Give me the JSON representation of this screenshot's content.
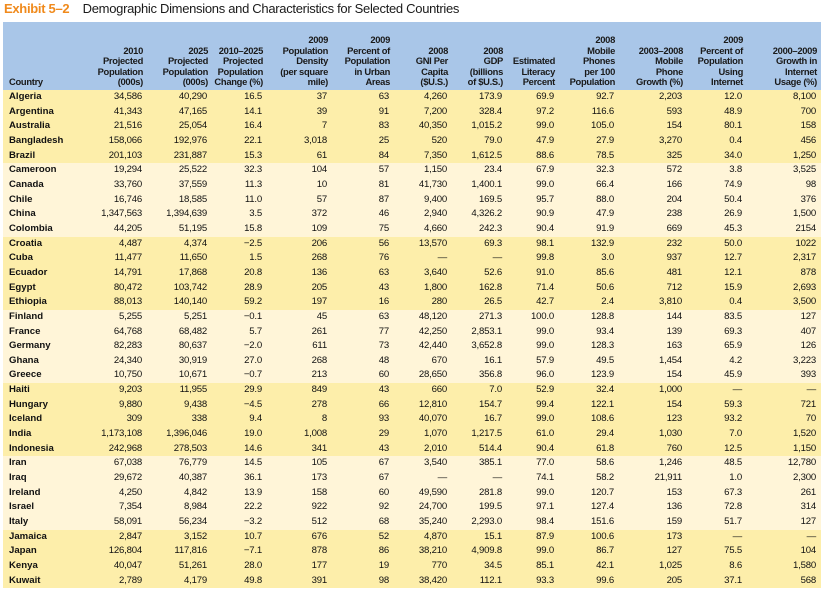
{
  "title": {
    "exhibit": "Exhibit 5–2",
    "text": "Demographic Dimensions and Characteristics for Selected Countries"
  },
  "colors": {
    "exhibit": "#f08a1c",
    "header_bg": "#a9c6e8",
    "band_dark": "#fdeeaa",
    "band_light": "#fff5d8"
  },
  "columns": [
    [
      "Country"
    ],
    [
      "2010",
      "Projected",
      "Population",
      "(000s)"
    ],
    [
      "2025",
      "Projected",
      "Population",
      "(000s)"
    ],
    [
      "2010–2025",
      "Projected",
      "Population",
      "Change (%)"
    ],
    [
      "2009",
      "Population",
      "Density",
      "(per square",
      "mile)"
    ],
    [
      "2009",
      "Percent of",
      "Population",
      "in Urban",
      "Areas"
    ],
    [
      "2008",
      "GNI Per",
      "Capita",
      "($U.S.)"
    ],
    [
      "2008",
      "GDP",
      "(billions",
      "of $U.S.)"
    ],
    [
      "Estimated",
      "Literacy",
      "Percent"
    ],
    [
      "2008",
      "Mobile",
      "Phones",
      "per 100",
      "Population"
    ],
    [
      "2003–2008",
      "Mobile",
      "Phone",
      "Growth (%)"
    ],
    [
      "2009",
      "Percent of",
      "Population",
      "Using",
      "Internet"
    ],
    [
      "2000–2009",
      "Growth in",
      "Internet",
      "Usage (%)"
    ]
  ],
  "groups": [
    [
      [
        "Algeria",
        "34,586",
        "40,290",
        "16.5",
        "37",
        "63",
        "4,260",
        "173.9",
        "69.9",
        "92.7",
        "2,203",
        "12.0",
        "8,100"
      ],
      [
        "Argentina",
        "41,343",
        "47,165",
        "14.1",
        "39",
        "91",
        "7,200",
        "328.4",
        "97.2",
        "116.6",
        "593",
        "48.9",
        "700"
      ],
      [
        "Australia",
        "21,516",
        "25,054",
        "16.4",
        "7",
        "83",
        "40,350",
        "1,015.2",
        "99.0",
        "105.0",
        "154",
        "80.1",
        "158"
      ],
      [
        "Bangladesh",
        "158,066",
        "192,976",
        "22.1",
        "3,018",
        "25",
        "520",
        "79.0",
        "47.9",
        "27.9",
        "3,270",
        "0.4",
        "456"
      ],
      [
        "Brazil",
        "201,103",
        "231,887",
        "15.3",
        "61",
        "84",
        "7,350",
        "1,612.5",
        "88.6",
        "78.5",
        "325",
        "34.0",
        "1,250"
      ]
    ],
    [
      [
        "Cameroon",
        "19,294",
        "25,522",
        "32.3",
        "104",
        "57",
        "1,150",
        "23.4",
        "67.9",
        "32.3",
        "572",
        "3.8",
        "3,525"
      ],
      [
        "Canada",
        "33,760",
        "37,559",
        "11.3",
        "10",
        "81",
        "41,730",
        "1,400.1",
        "99.0",
        "66.4",
        "166",
        "74.9",
        "98"
      ],
      [
        "Chile",
        "16,746",
        "18,585",
        "11.0",
        "57",
        "87",
        "9,400",
        "169.5",
        "95.7",
        "88.0",
        "204",
        "50.4",
        "376"
      ],
      [
        "China",
        "1,347,563",
        "1,394,639",
        "3.5",
        "372",
        "46",
        "2,940",
        "4,326.2",
        "90.9",
        "47.9",
        "238",
        "26.9",
        "1,500"
      ],
      [
        "Colombia",
        "44,205",
        "51,195",
        "15.8",
        "109",
        "75",
        "4,660",
        "242.3",
        "90.4",
        "91.9",
        "669",
        "45.3",
        "2154"
      ]
    ],
    [
      [
        "Croatia",
        "4,487",
        "4,374",
        "−2.5",
        "206",
        "56",
        "13,570",
        "69.3",
        "98.1",
        "132.9",
        "232",
        "50.0",
        "1022"
      ],
      [
        "Cuba",
        "11,477",
        "11,650",
        "1.5",
        "268",
        "76",
        "—",
        "—",
        "99.8",
        "3.0",
        "937",
        "12.7",
        "2,317"
      ],
      [
        "Ecuador",
        "14,791",
        "17,868",
        "20.8",
        "136",
        "63",
        "3,640",
        "52.6",
        "91.0",
        "85.6",
        "481",
        "12.1",
        "878"
      ],
      [
        "Egypt",
        "80,472",
        "103,742",
        "28.9",
        "205",
        "43",
        "1,800",
        "162.8",
        "71.4",
        "50.6",
        "712",
        "15.9",
        "2,693"
      ],
      [
        "Ethiopia",
        "88,013",
        "140,140",
        "59.2",
        "197",
        "16",
        "280",
        "26.5",
        "42.7",
        "2.4",
        "3,810",
        "0.4",
        "3,500"
      ]
    ],
    [
      [
        "Finland",
        "5,255",
        "5,251",
        "−0.1",
        "45",
        "63",
        "48,120",
        "271.3",
        "100.0",
        "128.8",
        "144",
        "83.5",
        "127"
      ],
      [
        "France",
        "64,768",
        "68,482",
        "5.7",
        "261",
        "77",
        "42,250",
        "2,853.1",
        "99.0",
        "93.4",
        "139",
        "69.3",
        "407"
      ],
      [
        "Germany",
        "82,283",
        "80,637",
        "−2.0",
        "611",
        "73",
        "42,440",
        "3,652.8",
        "99.0",
        "128.3",
        "163",
        "65.9",
        "126"
      ],
      [
        "Ghana",
        "24,340",
        "30,919",
        "27.0",
        "268",
        "48",
        "670",
        "16.1",
        "57.9",
        "49.5",
        "1,454",
        "4.2",
        "3,223"
      ],
      [
        "Greece",
        "10,750",
        "10,671",
        "−0.7",
        "213",
        "60",
        "28,650",
        "356.8",
        "96.0",
        "123.9",
        "154",
        "45.9",
        "393"
      ]
    ],
    [
      [
        "Haiti",
        "9,203",
        "11,955",
        "29.9",
        "849",
        "43",
        "660",
        "7.0",
        "52.9",
        "32.4",
        "1,000",
        "—",
        "—"
      ],
      [
        "Hungary",
        "9,880",
        "9,438",
        "−4.5",
        "278",
        "66",
        "12,810",
        "154.7",
        "99.4",
        "122.1",
        "154",
        "59.3",
        "721"
      ],
      [
        "Iceland",
        "309",
        "338",
        "9.4",
        "8",
        "93",
        "40,070",
        "16.7",
        "99.0",
        "108.6",
        "123",
        "93.2",
        "70"
      ],
      [
        "India",
        "1,173,108",
        "1,396,046",
        "19.0",
        "1,008",
        "29",
        "1,070",
        "1,217.5",
        "61.0",
        "29.4",
        "1,030",
        "7.0",
        "1,520"
      ],
      [
        "Indonesia",
        "242,968",
        "278,503",
        "14.6",
        "341",
        "43",
        "2,010",
        "514.4",
        "90.4",
        "61.8",
        "760",
        "12.5",
        "1,150"
      ]
    ],
    [
      [
        "Iran",
        "67,038",
        "76,779",
        "14.5",
        "105",
        "67",
        "3,540",
        "385.1",
        "77.0",
        "58.6",
        "1,246",
        "48.5",
        "12,780"
      ],
      [
        "Iraq",
        "29,672",
        "40,387",
        "36.1",
        "173",
        "67",
        "—",
        "—",
        "74.1",
        "58.2",
        "21,911",
        "1.0",
        "2,300"
      ],
      [
        "Ireland",
        "4,250",
        "4,842",
        "13.9",
        "158",
        "60",
        "49,590",
        "281.8",
        "99.0",
        "120.7",
        "153",
        "67.3",
        "261"
      ],
      [
        "Israel",
        "7,354",
        "8,984",
        "22.2",
        "922",
        "92",
        "24,700",
        "199.5",
        "97.1",
        "127.4",
        "136",
        "72.8",
        "314"
      ],
      [
        "Italy",
        "58,091",
        "56,234",
        "−3.2",
        "512",
        "68",
        "35,240",
        "2,293.0",
        "98.4",
        "151.6",
        "159",
        "51.7",
        "127"
      ]
    ],
    [
      [
        "Jamaica",
        "2,847",
        "3,152",
        "10.7",
        "676",
        "52",
        "4,870",
        "15.1",
        "87.9",
        "100.6",
        "173",
        "—",
        "—"
      ],
      [
        "Japan",
        "126,804",
        "117,816",
        "−7.1",
        "878",
        "86",
        "38,210",
        "4,909.8",
        "99.0",
        "86.7",
        "127",
        "75.5",
        "104"
      ],
      [
        "Kenya",
        "40,047",
        "51,261",
        "28.0",
        "177",
        "19",
        "770",
        "34.5",
        "85.1",
        "42.1",
        "1,025",
        "8.6",
        "1,580"
      ],
      [
        "Kuwait",
        "2,789",
        "4,179",
        "49.8",
        "391",
        "98",
        "38,420",
        "112.1",
        "93.3",
        "99.6",
        "205",
        "37.1",
        "568"
      ]
    ]
  ]
}
